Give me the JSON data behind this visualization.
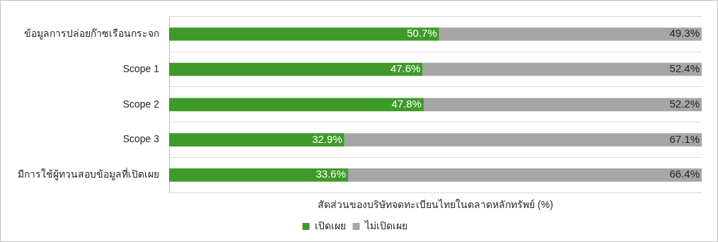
{
  "chart_data": {
    "type": "bar",
    "orientation": "horizontal",
    "stacked": true,
    "xlabel": "สัดส่วนของบริษัทจดทะเบียนไทยในตลาดหลักทรัพย์ (%)",
    "categories": [
      "ข้อมูลการปล่อยก๊าซเรือนกระจก",
      "Scope 1",
      "Scope 2",
      "Scope 3",
      "มีการใช้ผู้ทวนสอบข้อมูลที่เปิดเผย"
    ],
    "series": [
      {
        "name": "เปิดเผย",
        "color": "#3f9a2a",
        "values": [
          50.7,
          47.6,
          47.8,
          32.9,
          33.6
        ],
        "value_labels": [
          "50.7%",
          "47.6%",
          "47.8%",
          "32.9%",
          "33.6%"
        ]
      },
      {
        "name": "ไม่เปิดเผย",
        "color": "#a6a6a6",
        "values": [
          49.3,
          52.4,
          52.2,
          67.1,
          66.4
        ],
        "value_labels": [
          "49.3%",
          "52.4%",
          "52.2%",
          "67.1%",
          "66.4%"
        ]
      }
    ],
    "legend": "bottom",
    "grid": "y",
    "tick_labels": "y"
  }
}
